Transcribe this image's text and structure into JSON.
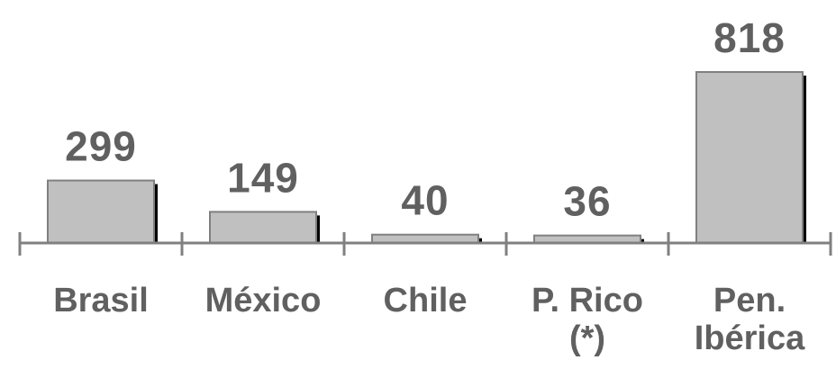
{
  "chart_data": {
    "type": "bar",
    "title": "",
    "xlabel": "",
    "ylabel": "",
    "categories": [
      [
        "Brasil"
      ],
      [
        "México"
      ],
      [
        "Chile"
      ],
      [
        "P. Rico",
        "(*)"
      ],
      [
        "Pen.",
        "Ibérica"
      ]
    ],
    "values": [
      299,
      149,
      40,
      36,
      818
    ],
    "value_labels": [
      "299",
      "149",
      "40",
      "36",
      "818"
    ],
    "ylim": [
      0,
      818
    ],
    "grid": false,
    "legend": "none"
  },
  "colors": {
    "bar_fill": "#c0c0c0",
    "bar_outline": "#808080",
    "bar_shadow": "#000000",
    "axis": "#808080",
    "text": "#606060"
  }
}
